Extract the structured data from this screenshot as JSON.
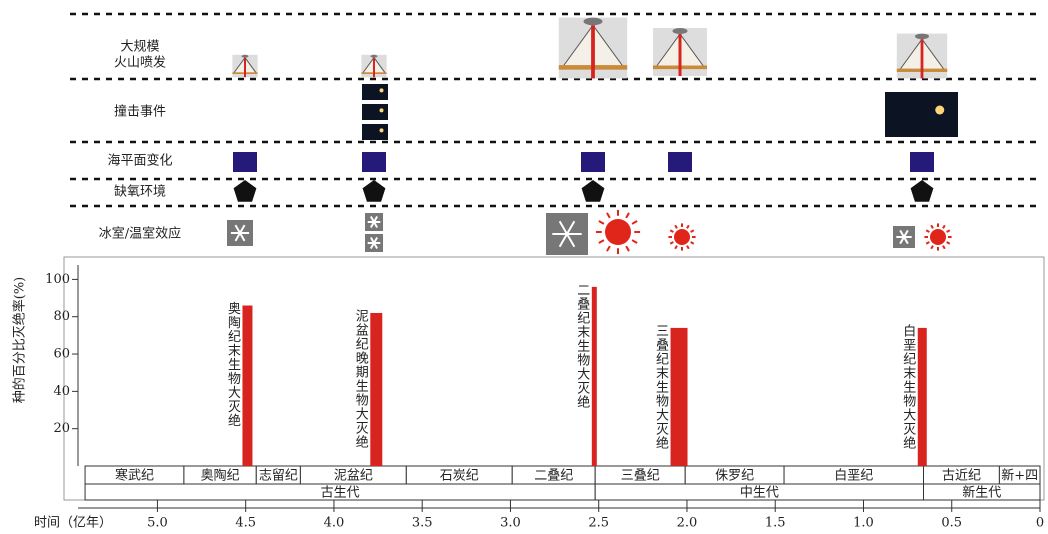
{
  "factor_rows": [
    [
      "大规模",
      "火山喷发"
    ],
    [
      "撞击事件"
    ],
    [
      "海平面变化"
    ],
    [
      "缺氧环境"
    ],
    [
      "冰室/温室效应"
    ]
  ],
  "chart_data": {
    "type": "bar",
    "ylabel": "种的百分比灭绝率(%)",
    "xlabel": "时间（亿年）",
    "x": [
      4.49,
      3.76,
      2.525,
      2.045,
      0.667
    ],
    "values": [
      86,
      82,
      96,
      74,
      74
    ],
    "annotations": [
      "奥陶纪末生物大灭绝",
      "泥盆纪晚期生物大灭绝",
      "二叠纪末生物大灭绝",
      "三叠纪末生物大灭绝",
      "白垩纪末生物大灭绝"
    ],
    "color": "#d8241f",
    "xlim": [
      5.45,
      0
    ],
    "ylim": [
      0,
      112
    ],
    "xticks": [
      {
        "value": 5,
        "label": "5.0"
      },
      4.5,
      {
        "value": 4,
        "label": "4.0"
      },
      3.5,
      {
        "value": 3,
        "label": "3.0"
      },
      2.5,
      {
        "value": 2,
        "label": "2.0"
      },
      1.5,
      {
        "value": 1,
        "label": "1.0"
      },
      0.5,
      0
    ],
    "yticks": [
      20,
      40,
      60,
      80,
      100
    ],
    "periods": [
      {
        "name": "寒武纪",
        "start": 5.41,
        "end": 4.85
      },
      {
        "name": "奥陶纪",
        "start": 4.85,
        "end": 4.44
      },
      {
        "name": "志留纪",
        "start": 4.44,
        "end": 4.19
      },
      {
        "name": "泥盆纪",
        "start": 4.19,
        "end": 3.59
      },
      {
        "name": "石炭纪",
        "start": 3.59,
        "end": 2.99
      },
      {
        "name": "二叠纪",
        "start": 2.99,
        "end": 2.52
      },
      {
        "name": "三叠纪",
        "start": 2.52,
        "end": 2.01
      },
      {
        "name": "侏罗纪",
        "start": 2.01,
        "end": 1.45
      },
      {
        "name": "白垩纪",
        "start": 1.45,
        "end": 0.66
      },
      {
        "name": "古近纪",
        "start": 0.66,
        "end": 0.23
      },
      {
        "name": "新+四",
        "start": 0.23,
        "end": 0
      }
    ],
    "eras": [
      {
        "name": "古生代",
        "start": 5.41,
        "end": 2.52
      },
      {
        "name": "中生代",
        "start": 2.52,
        "end": 0.66
      },
      {
        "name": "新生代",
        "start": 0.66,
        "end": 0
      }
    ]
  }
}
